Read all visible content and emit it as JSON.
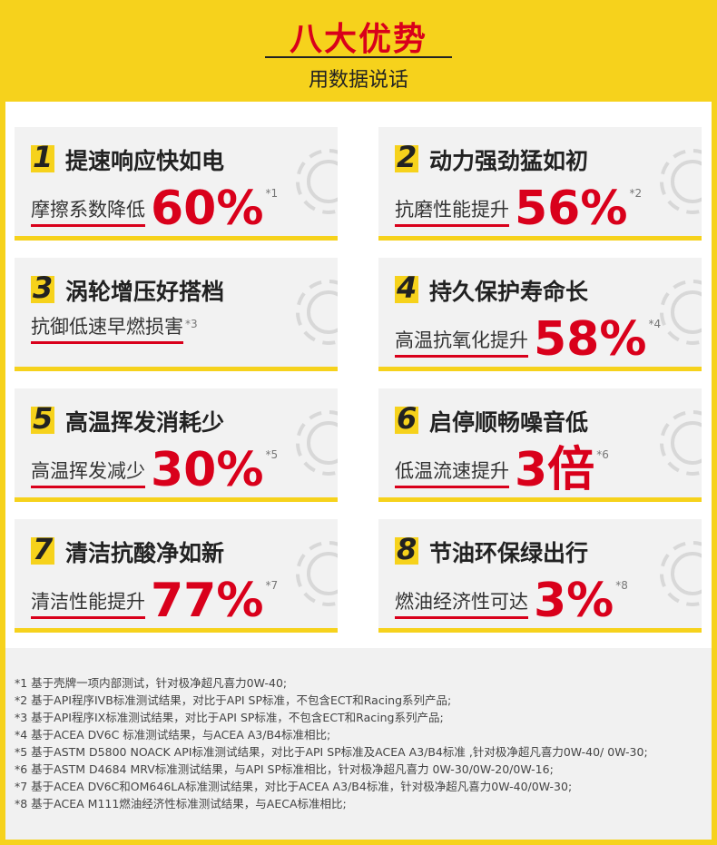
{
  "header": {
    "title": "八大优势",
    "subtitle": "用数据说话"
  },
  "items": [
    {
      "number": "1",
      "title": "提速响应快如电",
      "text": "摩擦系数降低",
      "value": "60%",
      "note": "*1"
    },
    {
      "number": "2",
      "title": "动力强劲猛如初",
      "text": "抗磨性能提升",
      "value": "56%",
      "note": "*2"
    },
    {
      "number": "3",
      "title": "涡轮增压好搭档",
      "text": "抗御低速早燃损害",
      "note": "*3"
    },
    {
      "number": "4",
      "title": "持久保护寿命长",
      "text": "高温抗氧化提升",
      "value": "58%",
      "note": "*4"
    },
    {
      "number": "5",
      "title": "高温挥发消耗少",
      "text": "高温挥发减少",
      "value": "30%",
      "note": "*5"
    },
    {
      "number": "6",
      "title": "启停顺畅噪音低",
      "text": "低温流速提升",
      "value": "3倍",
      "note": "*6"
    },
    {
      "number": "7",
      "title": "清洁抗酸净如新",
      "text": "清洁性能提升",
      "value": "77%",
      "note": "*7"
    },
    {
      "number": "8",
      "title": "节油环保绿出行",
      "text": "燃油经济性可达",
      "value": "3%",
      "note": "*8"
    }
  ],
  "footnotes": [
    "*1 基于壳牌一项内部测试，针对极净超凡喜力0W-40;",
    "*2 基于API程序IVB标准测试结果，对比于API SP标准，不包含ECT和Racing系列产品;",
    "*3 基于API程序IX标准测试结果，对比于API SP标准，不包含ECT和Racing系列产品;",
    "*4 基于ACEA DV6C 标准测试结果，与ACEA A3/B4标准相比;",
    "*5 基于ASTM D5800 NOACK API标准测试结果，对比于API SP标准及ACEA A3/B4标准 ,针对极净超凡喜力0W-40/ 0W-30;",
    "*6 基于ASTM D4684 MRV标准测试结果，与API SP标准相比，针对极净超凡喜力 0W-30/0W-20/0W-16;",
    "*7 基于ACEA DV6C和OM646LA标准测试结果，对比于ACEA A3/B4标准，针对极净超凡喜力0W-40/0W-30;",
    "*8 基于ACEA M111燃油经济性标准测试结果，与AECA标准相比;"
  ]
}
